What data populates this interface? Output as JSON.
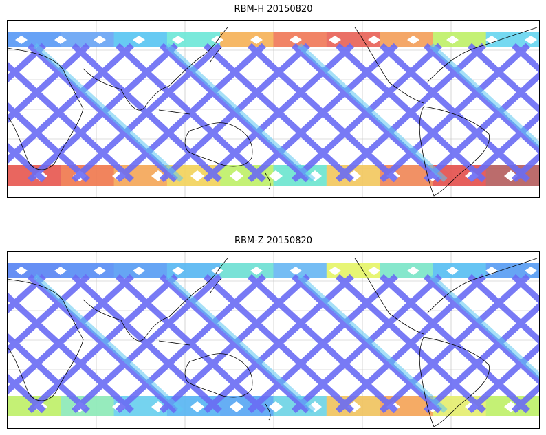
{
  "panels": [
    {
      "title": "RBM-H 20150820",
      "track_color": "#6a6cf4",
      "band_north": [
        "#5b9bf6",
        "#6aa6f5",
        "#5bc6f2",
        "#6fe8d8",
        "#f6b25a",
        "#f07a5a",
        "#e9645a",
        "#f4a05c",
        "#c0f06a",
        "#6ad6f0"
      ],
      "band_south": [
        "#e85a52",
        "#f07a50",
        "#f5a85a",
        "#f3d35d",
        "#bff06a",
        "#6ee6d0",
        "#f2c860",
        "#f08858",
        "#e4524f",
        "#b66060"
      ]
    },
    {
      "title": "RBM-Z 20150820",
      "track_color": "#6a6cf4",
      "band_north": [
        "#5a86f4",
        "#5a8ff5",
        "#5a9ef4",
        "#5ab8f2",
        "#6fe0d4",
        "#6ab8f4",
        "#e6f56a",
        "#7ce6c8",
        "#5ac0f2",
        "#5a9ef4"
      ],
      "band_south": [
        "#bff06a",
        "#8eeab8",
        "#6ad0ee",
        "#5ab6f2",
        "#5aa8f4",
        "#6fd4e6",
        "#f0c460",
        "#f5a458",
        "#e6ee70",
        "#bff06a"
      ]
    }
  ]
}
